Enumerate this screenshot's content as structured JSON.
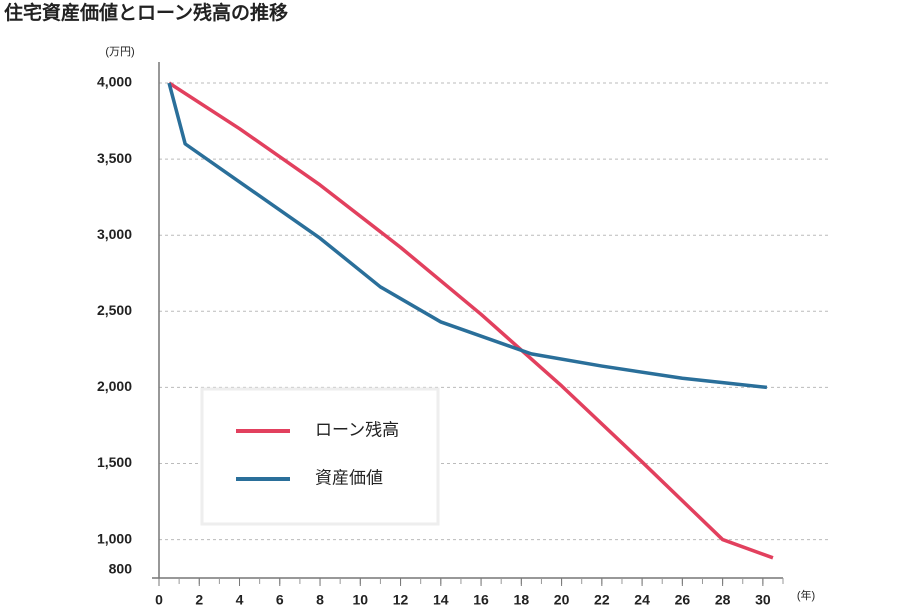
{
  "chart_data": {
    "type": "line",
    "title": "住宅資産価値とローン残高の推移",
    "y_label": "(万円)",
    "x_label": "(年)",
    "xlim": [
      0,
      31
    ],
    "xticks": [
      0,
      2,
      4,
      6,
      8,
      10,
      12,
      14,
      16,
      18,
      20,
      22,
      24,
      26,
      28,
      30
    ],
    "ylim": [
      800,
      4000
    ],
    "yticks": [
      800,
      {
        "value": 1000,
        "label": "1,000"
      },
      {
        "value": 1500,
        "label": "1,500"
      },
      {
        "value": 2000,
        "label": "2,000"
      },
      {
        "value": 2500,
        "label": "2,500"
      },
      {
        "value": 3000,
        "label": "3,000"
      },
      {
        "value": 3500,
        "label": "3,500"
      },
      {
        "value": 4000,
        "label": "4,000"
      }
    ],
    "grid": true,
    "series": [
      {
        "name": "ローン残高",
        "color": "#e2405e",
        "x": [
          0.5,
          4,
          8,
          12,
          16,
          20,
          24,
          28,
          30.5
        ],
        "values": [
          4000,
          3700,
          3330,
          2920,
          2480,
          2010,
          1510,
          1000,
          880
        ]
      },
      {
        "name": "資産価値",
        "color": "#2a6f9a",
        "x": [
          0.5,
          1.3,
          4,
          8,
          11,
          14,
          18.5,
          22,
          26,
          30.2
        ],
        "values": [
          4000,
          3600,
          3350,
          2980,
          2660,
          2430,
          2220,
          2140,
          2060,
          2000
        ]
      }
    ]
  }
}
